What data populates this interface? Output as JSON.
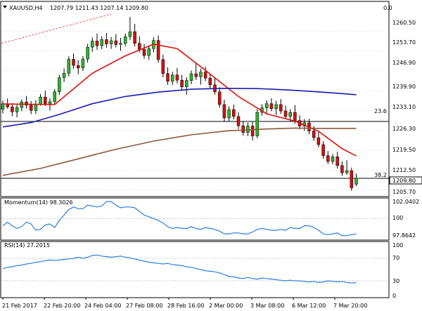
{
  "header": {
    "symbol": "XAUUSD,H4",
    "ohlc": "1207.79 1211.43 1207.14 1209.80",
    "right_value": "0.0"
  },
  "price_axis": {
    "ticks": [
      "1260.50",
      "1253.70",
      "1246.90",
      "1239.90",
      "1233.10",
      "1226.30",
      "1219.50",
      "1212.50",
      "1205.70"
    ],
    "current_price": "1209.80"
  },
  "time_axis": {
    "labels": [
      "21 Feb 2017",
      "22 Feb 20:00",
      "24 Feb 04:00",
      "27 Feb 08:00",
      "28 Feb 16:00",
      "2 Mar 00:00",
      "3 Mar 08:00",
      "6 Mar 12:00",
      "7 Mar 20:00"
    ]
  },
  "fib_labels": [
    "23.6",
    "38.2"
  ],
  "momentum": {
    "title": "Momentum(14) 98.3026",
    "ticks": [
      "102.0402",
      "100",
      "97.8642"
    ]
  },
  "rsi": {
    "title": "RSI(14) 27.2015",
    "ticks": [
      "100",
      "70",
      "30",
      "0"
    ]
  },
  "colors": {
    "bull": "#2db52d",
    "bear": "#d01010",
    "sma_fast": "#e01010",
    "sma_mid": "#1b1bb0",
    "sma_slow": "#8b5a3c",
    "indicator": "#2b7fd8",
    "trendline": "#e86060"
  },
  "chart_data": {
    "type": "candlestick",
    "symbol": "XAUUSD",
    "timeframe": "H4",
    "last_ohlc": {
      "open": 1207.79,
      "high": 1211.43,
      "low": 1207.14,
      "close": 1209.8
    },
    "price_range": [
      1203.5,
      1266.4
    ],
    "candles": [
      [
        1233.6,
        1236.6,
        1232.2,
        1235.5
      ],
      [
        1235.5,
        1237.3,
        1233.8,
        1234.4
      ],
      [
        1234.4,
        1235.7,
        1231.2,
        1232.7
      ],
      [
        1232.7,
        1235.3,
        1230.8,
        1234.2
      ],
      [
        1234.2,
        1237.0,
        1232.9,
        1236.1
      ],
      [
        1236.1,
        1238.2,
        1233.9,
        1235.0
      ],
      [
        1235.0,
        1236.4,
        1231.9,
        1233.2
      ],
      [
        1233.2,
        1236.7,
        1232.0,
        1235.4
      ],
      [
        1235.4,
        1238.9,
        1234.8,
        1237.8
      ],
      [
        1237.8,
        1240.0,
        1234.7,
        1235.4
      ],
      [
        1235.4,
        1237.4,
        1233.2,
        1236.2
      ],
      [
        1236.2,
        1240.6,
        1235.3,
        1239.6
      ],
      [
        1239.6,
        1245.4,
        1238.5,
        1244.5
      ],
      [
        1244.5,
        1247.6,
        1243.0,
        1246.0
      ],
      [
        1246.0,
        1251.8,
        1244.9,
        1250.8
      ],
      [
        1250.8,
        1252.8,
        1247.6,
        1248.7
      ],
      [
        1248.7,
        1250.5,
        1245.6,
        1247.8
      ],
      [
        1247.8,
        1251.9,
        1246.8,
        1250.9
      ],
      [
        1250.9,
        1256.1,
        1249.6,
        1255.0
      ],
      [
        1255.0,
        1258.3,
        1253.4,
        1257.1
      ],
      [
        1257.1,
        1259.7,
        1254.1,
        1255.5
      ],
      [
        1255.5,
        1258.7,
        1254.3,
        1257.6
      ],
      [
        1257.6,
        1259.9,
        1254.8,
        1256.1
      ],
      [
        1256.1,
        1258.5,
        1254.4,
        1257.2
      ],
      [
        1257.2,
        1259.5,
        1254.9,
        1255.9
      ],
      [
        1255.9,
        1258.2,
        1253.7,
        1256.3
      ],
      [
        1256.3,
        1259.7,
        1255.2,
        1258.6
      ],
      [
        1258.6,
        1265.4,
        1257.4,
        1260.3
      ],
      [
        1260.3,
        1263.0,
        1255.2,
        1256.3
      ],
      [
        1256.3,
        1258.7,
        1253.2,
        1254.2
      ],
      [
        1254.2,
        1256.1,
        1251.0,
        1252.1
      ],
      [
        1252.1,
        1255.6,
        1250.6,
        1254.5
      ],
      [
        1254.5,
        1258.4,
        1253.2,
        1257.3
      ],
      [
        1257.3,
        1259.0,
        1249.6,
        1250.7
      ],
      [
        1250.7,
        1252.4,
        1244.6,
        1245.9
      ],
      [
        1245.9,
        1248.0,
        1242.0,
        1243.2
      ],
      [
        1243.2,
        1246.5,
        1241.9,
        1245.4
      ],
      [
        1245.4,
        1247.8,
        1242.4,
        1243.6
      ],
      [
        1243.6,
        1245.5,
        1240.2,
        1241.3
      ],
      [
        1241.3,
        1244.6,
        1238.6,
        1243.5
      ],
      [
        1243.5,
        1246.9,
        1242.2,
        1245.8
      ],
      [
        1245.8,
        1249.5,
        1243.7,
        1244.8
      ],
      [
        1244.8,
        1247.6,
        1242.1,
        1246.4
      ],
      [
        1246.4,
        1248.2,
        1243.3,
        1244.3
      ],
      [
        1244.3,
        1245.9,
        1240.9,
        1242.0
      ],
      [
        1242.0,
        1244.6,
        1238.6,
        1239.6
      ],
      [
        1239.6,
        1241.2,
        1234.1,
        1235.2
      ],
      [
        1235.2,
        1236.9,
        1229.5,
        1230.6
      ],
      [
        1230.6,
        1234.6,
        1229.4,
        1233.5
      ],
      [
        1233.5,
        1235.2,
        1230.1,
        1231.1
      ],
      [
        1231.1,
        1232.6,
        1226.8,
        1227.9
      ],
      [
        1227.9,
        1229.3,
        1224.5,
        1225.6
      ],
      [
        1225.6,
        1229.0,
        1224.3,
        1227.8
      ],
      [
        1227.8,
        1229.2,
        1222.8,
        1224.4
      ],
      [
        1224.4,
        1233.6,
        1223.6,
        1232.5
      ],
      [
        1232.5,
        1235.3,
        1231.4,
        1234.1
      ],
      [
        1234.1,
        1236.7,
        1232.2,
        1235.5
      ],
      [
        1235.5,
        1237.4,
        1232.9,
        1233.8
      ],
      [
        1233.8,
        1236.5,
        1231.6,
        1235.2
      ],
      [
        1235.2,
        1237.1,
        1232.0,
        1233.0
      ],
      [
        1233.0,
        1234.8,
        1230.2,
        1231.1
      ],
      [
        1231.1,
        1233.6,
        1229.4,
        1232.5
      ],
      [
        1232.5,
        1235.0,
        1228.6,
        1229.7
      ],
      [
        1229.7,
        1231.5,
        1226.7,
        1227.8
      ],
      [
        1227.8,
        1230.2,
        1226.2,
        1228.9
      ],
      [
        1228.9,
        1230.3,
        1225.0,
        1226.1
      ],
      [
        1226.1,
        1227.8,
        1222.7,
        1223.8
      ],
      [
        1223.8,
        1225.9,
        1220.5,
        1221.4
      ],
      [
        1221.4,
        1222.6,
        1216.5,
        1217.6
      ],
      [
        1217.6,
        1219.2,
        1214.7,
        1215.6
      ],
      [
        1215.6,
        1218.1,
        1214.6,
        1217.2
      ],
      [
        1217.2,
        1219.0,
        1213.2,
        1214.2
      ],
      [
        1214.2,
        1215.6,
        1210.6,
        1211.7
      ],
      [
        1211.7,
        1216.0,
        1211.0,
        1212.4
      ],
      [
        1212.4,
        1213.5,
        1205.5,
        1206.5
      ],
      [
        1207.79,
        1211.43,
        1207.14,
        1209.8
      ]
    ],
    "fibonacci_levels": [
      {
        "label": "23.6",
        "price": 1229.4
      },
      {
        "label": "38.2",
        "price": 1209.8
      }
    ],
    "moving_averages": [
      {
        "color": "red",
        "points": [
          [
            0,
            1235.4
          ],
          [
            11,
            1235.2
          ],
          [
            19,
            1246.0
          ],
          [
            26,
            1252.0
          ],
          [
            32,
            1256.0
          ],
          [
            37,
            1254.5
          ],
          [
            43,
            1247.0
          ],
          [
            50,
            1238.0
          ],
          [
            56,
            1232.0
          ],
          [
            62,
            1229.5
          ],
          [
            67,
            1226.0
          ],
          [
            72,
            1220.0
          ],
          [
            75,
            1217.5
          ]
        ]
      },
      {
        "color": "blue",
        "points": [
          [
            0,
            1227.5
          ],
          [
            6,
            1229.0
          ],
          [
            12,
            1231.8
          ],
          [
            19,
            1235.5
          ],
          [
            26,
            1238.0
          ],
          [
            33,
            1239.5
          ],
          [
            40,
            1240.5
          ],
          [
            47,
            1240.8
          ],
          [
            54,
            1240.7
          ],
          [
            60,
            1240.3
          ],
          [
            66,
            1239.7
          ],
          [
            72,
            1239.0
          ],
          [
            75,
            1238.6
          ]
        ]
      },
      {
        "color": "brown",
        "points": [
          [
            0,
            1210.8
          ],
          [
            8,
            1213.2
          ],
          [
            16,
            1216.5
          ],
          [
            24,
            1219.8
          ],
          [
            32,
            1222.6
          ],
          [
            40,
            1224.8
          ],
          [
            48,
            1226.2
          ],
          [
            56,
            1226.8
          ],
          [
            62,
            1227.1
          ],
          [
            68,
            1227.0
          ],
          [
            75,
            1227.0
          ]
        ]
      }
    ],
    "momentum_14": {
      "last": 98.3026,
      "range": [
        97.8642,
        102.0402
      ],
      "values": [
        99.2,
        99.6,
        99.2,
        98.9,
        99.1,
        99.6,
        99.4,
        98.7,
        98.8,
        99.3,
        99.4,
        99.0,
        99.8,
        100.4,
        101.0,
        101.3,
        101.1,
        101.1,
        101.5,
        101.4,
        101.3,
        101.4,
        101.9,
        101.9,
        101.5,
        101.2,
        101.3,
        101.3,
        101.2,
        100.8,
        100.4,
        100.2,
        100.0,
        99.8,
        99.5,
        99.1,
        98.9,
        99.0,
        98.9,
        98.9,
        99.1,
        98.9,
        98.8,
        99.0,
        98.9,
        98.8,
        98.6,
        98.3,
        98.3,
        98.4,
        98.4,
        98.3,
        98.3,
        98.5,
        98.8,
        98.9,
        98.8,
        98.7,
        98.7,
        98.8,
        98.7,
        99.0,
        98.9,
        98.9,
        99.2,
        99.2,
        99.0,
        98.7,
        98.3,
        98.2,
        98.3,
        98.4,
        98.1,
        98.1,
        98.2,
        98.3
      ]
    },
    "rsi_14": {
      "last": 27.2015,
      "range": [
        0,
        100
      ],
      "levels": [
        30,
        70
      ],
      "values": [
        52,
        54,
        55,
        57,
        58,
        60,
        61,
        63,
        64,
        66,
        67,
        66,
        67,
        68,
        69,
        70,
        72,
        70,
        72,
        75,
        76,
        74,
        73,
        72,
        73,
        74,
        72,
        71,
        69,
        67,
        65,
        63,
        62,
        61,
        60,
        61,
        59,
        58,
        57,
        55,
        54,
        52,
        50,
        48,
        47,
        46,
        44,
        41,
        38,
        37,
        35,
        34,
        36,
        34,
        33,
        35,
        34,
        33,
        32,
        31,
        30,
        31,
        30,
        30,
        29,
        28,
        29,
        27,
        28,
        30,
        29,
        28,
        29,
        27,
        26,
        27
      ]
    }
  }
}
